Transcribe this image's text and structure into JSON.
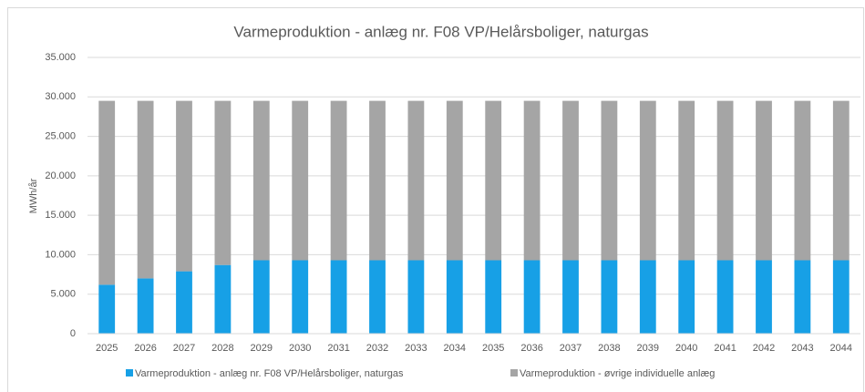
{
  "chart_data": {
    "type": "stacked_bar",
    "title": "Varmeproduktion - anlæg nr. F08 VP/Helårsboliger, naturgas",
    "ylabel": "MWh/år",
    "categories": [
      "2025",
      "2026",
      "2027",
      "2028",
      "2029",
      "2030",
      "2031",
      "2032",
      "2033",
      "2034",
      "2035",
      "2036",
      "2037",
      "2038",
      "2039",
      "2040",
      "2041",
      "2042",
      "2043",
      "2044"
    ],
    "series": [
      {
        "name": "Varmeproduktion - anlæg nr. F08 VP/Helårsboliger, naturgas",
        "color": "#17a0e6",
        "values": [
          6200,
          7000,
          7900,
          8700,
          9300,
          9300,
          9300,
          9300,
          9300,
          9300,
          9300,
          9300,
          9300,
          9300,
          9300,
          9300,
          9300,
          9300,
          9300,
          9300
        ]
      },
      {
        "name": "Varmeproduktion - øvrige individuelle anlæg",
        "color": "#a5a5a5",
        "values": [
          23300,
          22500,
          21600,
          20800,
          20200,
          20200,
          20200,
          20200,
          20200,
          20200,
          20200,
          20200,
          20200,
          20200,
          20200,
          20200,
          20200,
          20200,
          20200,
          20200
        ]
      }
    ],
    "ylim": [
      0,
      35000
    ],
    "yticks": [
      0,
      {
        "value": 5000,
        "label": "5.000"
      },
      {
        "value": 10000,
        "label": "10.000"
      },
      {
        "value": 15000,
        "label": "15.000"
      },
      {
        "value": 20000,
        "label": "20.000"
      },
      {
        "value": 25000,
        "label": "25.000"
      },
      {
        "value": 30000,
        "label": "30.000"
      },
      {
        "value": 35000,
        "label": "35.000"
      }
    ],
    "grid": true,
    "legend": "bottom"
  }
}
